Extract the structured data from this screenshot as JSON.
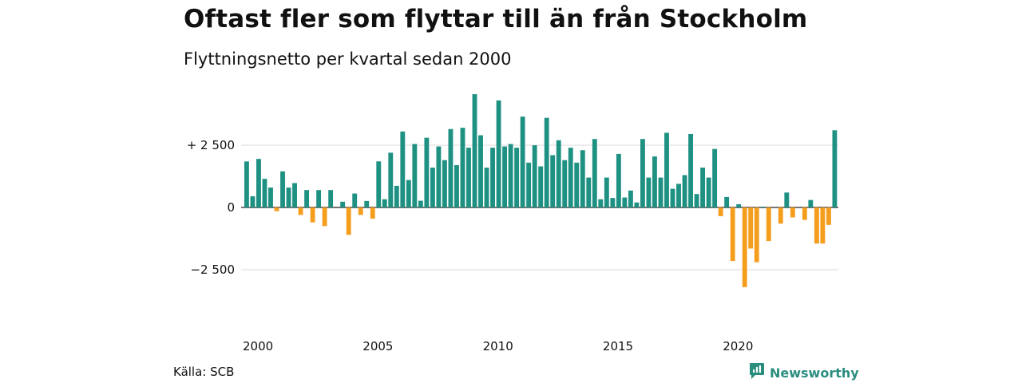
{
  "title": "Oftast fler som flyttar till än från Stockholm",
  "subtitle": "Flyttningsnetto per kvartal sedan 2000",
  "source": "Källa: SCB",
  "brand": {
    "name": "Newsworthy",
    "color": "#2a8e7f"
  },
  "colors": {
    "positive": "#1f9183",
    "negative": "#f59d1d",
    "grid": "#d9d9d9",
    "zero_line": "#222222"
  },
  "chart_data": {
    "type": "bar",
    "title": "Oftast fler som flyttar till än från Stockholm",
    "subtitle": "Flyttningsnetto per kvartal sedan 2000",
    "xlabel": "",
    "ylabel": "",
    "ylim": [
      -3600,
      4600
    ],
    "grid": true,
    "y_ticks": [
      {
        "value": 2500,
        "label": "+ 2 500"
      },
      {
        "value": 0,
        "label": "0"
      },
      {
        "value": -2500,
        "label": "−2 500"
      }
    ],
    "x_ticks": [
      {
        "index": 0,
        "label": "2000"
      },
      {
        "index": 20,
        "label": "2005"
      },
      {
        "index": 40,
        "label": "2010"
      },
      {
        "index": 60,
        "label": "2015"
      },
      {
        "index": 80,
        "label": "2020"
      }
    ],
    "first_quarter": "2000 Q1",
    "values": [
      1850,
      450,
      1950,
      1150,
      800,
      -150,
      1450,
      800,
      980,
      -300,
      700,
      -600,
      700,
      -750,
      700,
      0,
      230,
      -1100,
      560,
      -300,
      260,
      -450,
      1850,
      330,
      2200,
      870,
      3050,
      1100,
      2550,
      270,
      2800,
      1600,
      2450,
      1900,
      3150,
      1700,
      3200,
      2400,
      4550,
      2900,
      1600,
      2400,
      4300,
      2450,
      2550,
      2400,
      3650,
      1800,
      2500,
      1650,
      3600,
      2100,
      2700,
      1900,
      2400,
      1800,
      2300,
      1200,
      2750,
      330,
      1200,
      380,
      2150,
      400,
      680,
      200,
      2750,
      1200,
      2050,
      1200,
      3000,
      750,
      950,
      1300,
      2950,
      540,
      1600,
      1200,
      2350,
      -350,
      420,
      -2150,
      130,
      -3200,
      -1650,
      -2200,
      30,
      -1350,
      0,
      -650,
      600,
      -400,
      0,
      -500,
      300,
      -1450,
      -1450,
      -700,
      3100
    ]
  }
}
